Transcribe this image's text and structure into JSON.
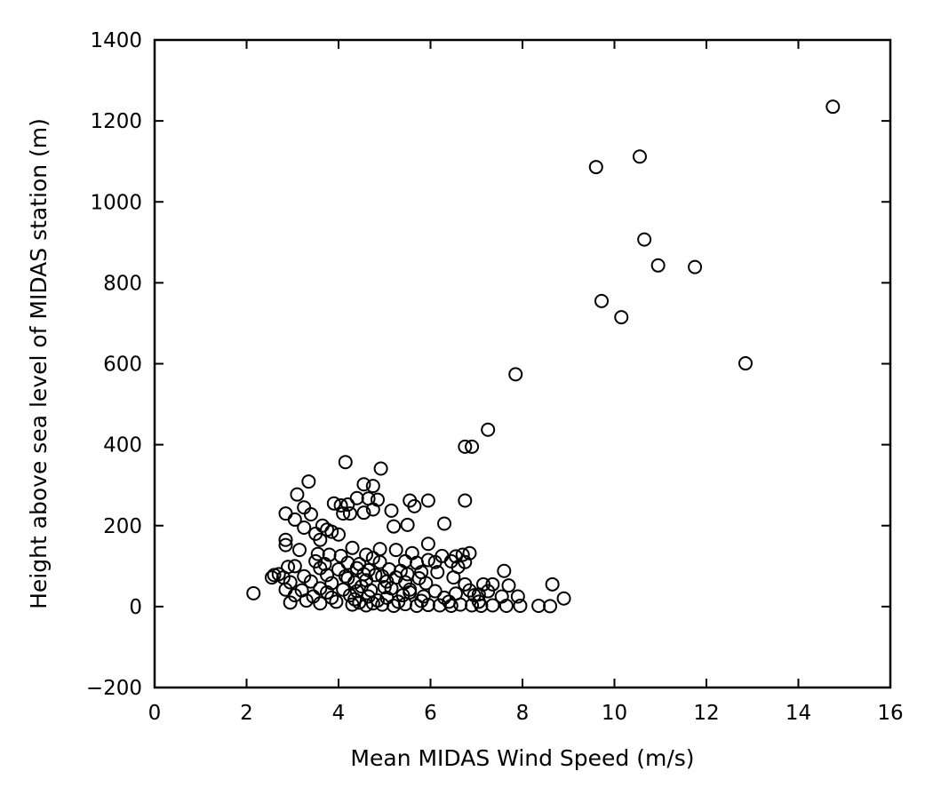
{
  "chart_data": {
    "type": "scatter",
    "title": "",
    "xlabel": "Mean MIDAS Wind Speed (m/s)",
    "ylabel": "Height above sea level of MIDAS station (m)",
    "xlim": [
      0,
      16
    ],
    "ylim": [
      -200,
      1400
    ],
    "xticks": [
      0,
      2,
      4,
      6,
      8,
      10,
      12,
      14,
      16
    ],
    "yticks": [
      -200,
      0,
      200,
      400,
      600,
      800,
      1000,
      1200,
      1400
    ],
    "xtick_labels": [
      "0",
      "2",
      "4",
      "6",
      "8",
      "10",
      "12",
      "14",
      "16"
    ],
    "ytick_labels": [
      "−200",
      "0",
      "200",
      "400",
      "600",
      "800",
      "1000",
      "1200",
      "1400"
    ],
    "grid": false,
    "marker": "open-circle",
    "marker_color": "#000000",
    "series": [
      {
        "points": [
          [
            14.75,
            1235
          ],
          [
            10.55,
            1112
          ],
          [
            9.6,
            1086
          ],
          [
            10.65,
            907
          ],
          [
            10.95,
            843
          ],
          [
            11.75,
            839
          ],
          [
            9.72,
            755
          ],
          [
            10.15,
            715
          ],
          [
            12.85,
            601
          ],
          [
            7.85,
            574
          ],
          [
            7.25,
            437
          ],
          [
            6.75,
            395
          ],
          [
            6.9,
            395
          ],
          [
            4.15,
            357
          ],
          [
            4.92,
            341
          ],
          [
            3.35,
            309
          ],
          [
            4.55,
            302
          ],
          [
            4.75,
            298
          ],
          [
            3.1,
            277
          ],
          [
            4.4,
            268
          ],
          [
            4.65,
            267
          ],
          [
            4.85,
            264
          ],
          [
            5.55,
            262
          ],
          [
            5.95,
            262
          ],
          [
            6.75,
            262
          ],
          [
            3.9,
            255
          ],
          [
            4.05,
            250
          ],
          [
            4.2,
            252
          ],
          [
            3.25,
            245
          ],
          [
            5.65,
            248
          ],
          [
            4.75,
            240
          ],
          [
            5.15,
            237
          ],
          [
            4.1,
            230
          ],
          [
            4.25,
            230
          ],
          [
            4.55,
            232
          ],
          [
            2.85,
            230
          ],
          [
            3.4,
            228
          ],
          [
            3.05,
            215
          ],
          [
            5.5,
            202
          ],
          [
            6.3,
            205
          ],
          [
            5.2,
            198
          ],
          [
            3.65,
            200
          ],
          [
            3.25,
            195
          ],
          [
            3.75,
            190
          ],
          [
            3.85,
            185
          ],
          [
            3.5,
            180
          ],
          [
            4.0,
            178
          ],
          [
            2.85,
            165
          ],
          [
            3.6,
            165
          ],
          [
            2.85,
            152
          ],
          [
            4.3,
            145
          ],
          [
            4.9,
            142
          ],
          [
            5.25,
            140
          ],
          [
            3.15,
            140
          ],
          [
            5.95,
            155
          ],
          [
            3.55,
            130
          ],
          [
            3.8,
            128
          ],
          [
            4.05,
            125
          ],
          [
            4.6,
            128
          ],
          [
            4.75,
            120
          ],
          [
            5.6,
            132
          ],
          [
            6.25,
            125
          ],
          [
            6.55,
            124
          ],
          [
            6.7,
            128
          ],
          [
            6.85,
            132
          ],
          [
            5.95,
            115
          ],
          [
            6.1,
            110
          ],
          [
            3.5,
            112
          ],
          [
            3.7,
            105
          ],
          [
            4.2,
            108
          ],
          [
            4.45,
            105
          ],
          [
            4.9,
            110
          ],
          [
            5.45,
            112
          ],
          [
            5.7,
            108
          ],
          [
            6.45,
            112
          ],
          [
            6.75,
            110
          ],
          [
            3.05,
            100
          ],
          [
            2.9,
            98
          ],
          [
            3.6,
            95
          ],
          [
            4.0,
            92
          ],
          [
            4.4,
            95
          ],
          [
            4.65,
            90
          ],
          [
            5.1,
            92
          ],
          [
            5.35,
            88
          ],
          [
            5.8,
            85
          ],
          [
            6.6,
            98
          ],
          [
            7.6,
            88
          ],
          [
            2.6,
            78
          ],
          [
            2.7,
            80
          ],
          [
            2.55,
            72
          ],
          [
            2.8,
            72
          ],
          [
            3.25,
            75
          ],
          [
            3.75,
            78
          ],
          [
            4.15,
            75
          ],
          [
            4.55,
            80
          ],
          [
            4.8,
            78
          ],
          [
            5.25,
            72
          ],
          [
            5.75,
            70
          ],
          [
            6.5,
            72
          ],
          [
            2.95,
            60
          ],
          [
            3.4,
            62
          ],
          [
            3.85,
            58
          ],
          [
            4.35,
            60
          ],
          [
            4.6,
            65
          ],
          [
            5.05,
            62
          ],
          [
            5.45,
            60
          ],
          [
            5.9,
            58
          ],
          [
            6.75,
            55
          ],
          [
            7.15,
            55
          ],
          [
            7.35,
            55
          ],
          [
            7.7,
            52
          ],
          [
            8.65,
            55
          ],
          [
            2.85,
            42
          ],
          [
            3.2,
            40
          ],
          [
            3.6,
            45
          ],
          [
            4.1,
            42
          ],
          [
            4.4,
            38
          ],
          [
            4.7,
            40
          ],
          [
            5.15,
            45
          ],
          [
            5.55,
            42
          ],
          [
            6.1,
            38
          ],
          [
            6.85,
            40
          ],
          [
            7.25,
            38
          ],
          [
            3.05,
            28
          ],
          [
            3.45,
            25
          ],
          [
            3.85,
            22
          ],
          [
            4.25,
            28
          ],
          [
            4.65,
            25
          ],
          [
            5.05,
            22
          ],
          [
            5.4,
            28
          ],
          [
            5.85,
            25
          ],
          [
            6.3,
            22
          ],
          [
            6.95,
            28
          ],
          [
            7.55,
            25
          ],
          [
            7.9,
            25
          ],
          [
            8.9,
            20
          ],
          [
            2.15,
            33
          ],
          [
            2.95,
            10
          ],
          [
            3.3,
            15
          ],
          [
            3.6,
            8
          ],
          [
            3.95,
            12
          ],
          [
            4.3,
            5
          ],
          [
            4.45,
            10
          ],
          [
            4.6,
            3
          ],
          [
            4.75,
            8
          ],
          [
            4.95,
            5
          ],
          [
            5.2,
            2
          ],
          [
            5.45,
            6
          ],
          [
            5.7,
            2
          ],
          [
            5.95,
            4
          ],
          [
            6.2,
            3
          ],
          [
            6.45,
            2
          ],
          [
            6.65,
            5
          ],
          [
            6.9,
            3
          ],
          [
            7.1,
            2
          ],
          [
            7.35,
            3
          ],
          [
            7.65,
            2
          ],
          [
            7.95,
            2
          ],
          [
            8.35,
            2
          ],
          [
            8.6,
            1
          ],
          [
            4.35,
            18
          ],
          [
            4.85,
            15
          ],
          [
            5.3,
            12
          ],
          [
            5.8,
            14
          ],
          [
            6.4,
            12
          ],
          [
            7.05,
            12
          ],
          [
            3.75,
            35
          ],
          [
            4.5,
            50
          ],
          [
            5.0,
            48
          ],
          [
            5.55,
            35
          ],
          [
            6.55,
            32
          ],
          [
            7.05,
            30
          ],
          [
            4.2,
            70
          ],
          [
            4.95,
            75
          ],
          [
            5.5,
            80
          ],
          [
            6.15,
            85
          ]
        ]
      }
    ]
  }
}
